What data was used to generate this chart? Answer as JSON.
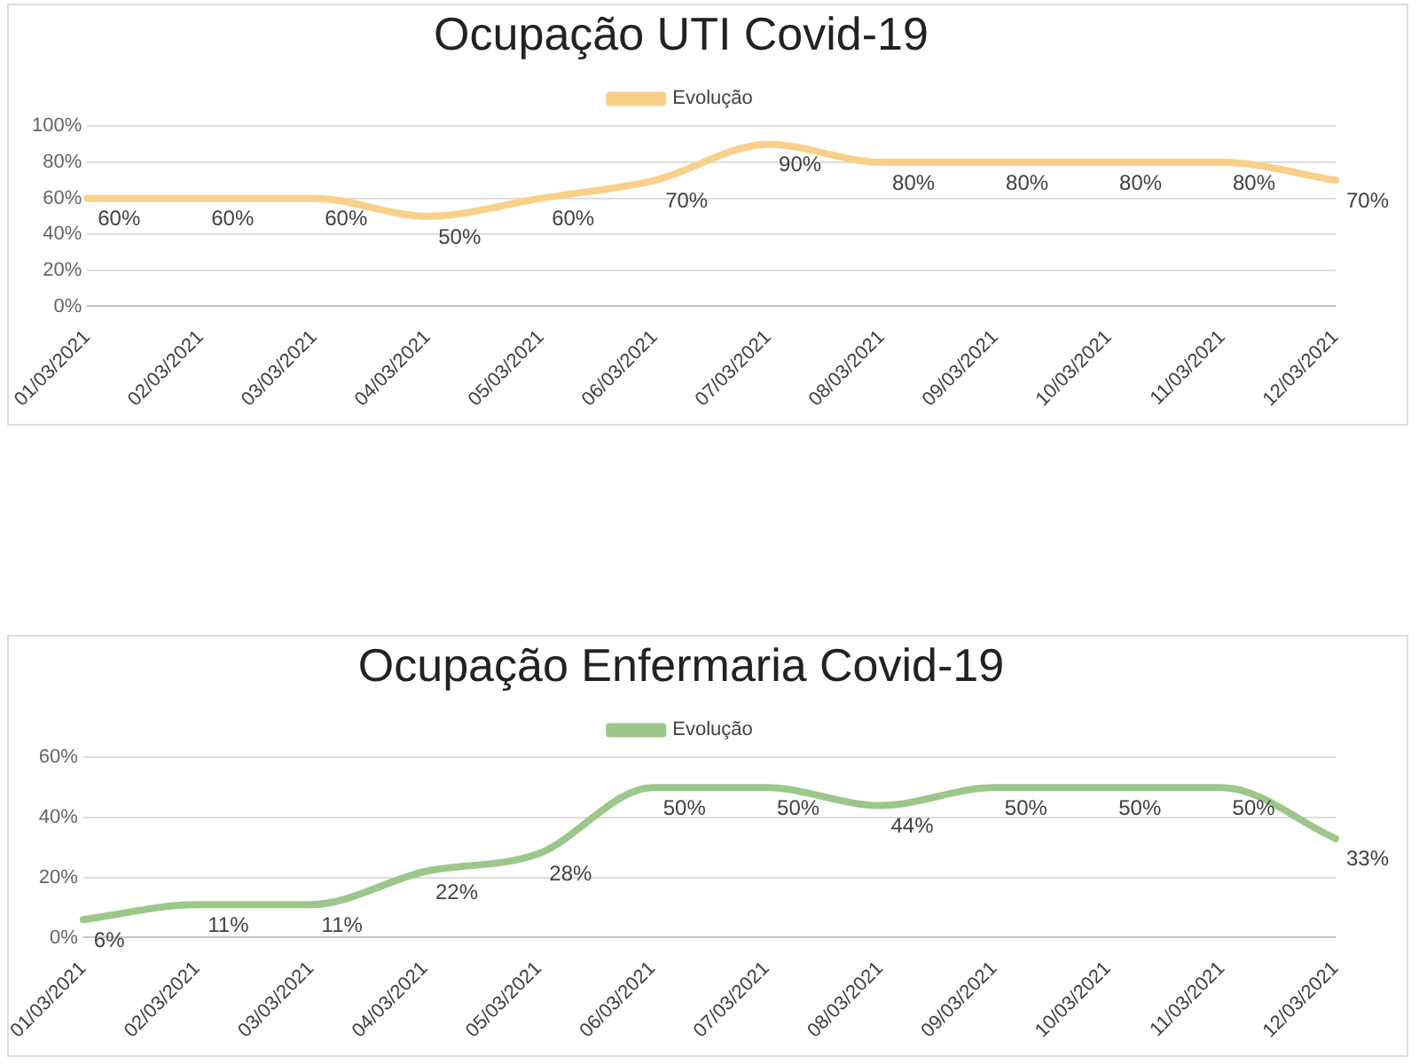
{
  "chart_data": [
    {
      "type": "line",
      "title": "Ocupação UTI Covid-19",
      "categories": [
        "01/03/2021",
        "02/03/2021",
        "03/03/2021",
        "04/03/2021",
        "05/03/2021",
        "06/03/2021",
        "07/03/2021",
        "08/03/2021",
        "09/03/2021",
        "10/03/2021",
        "11/03/2021",
        "12/03/2021"
      ],
      "series": [
        {
          "name": "Evolução",
          "color": "#f8d08a",
          "values": [
            60,
            60,
            60,
            50,
            60,
            70,
            90,
            80,
            80,
            80,
            80,
            70
          ],
          "value_labels": [
            "60%",
            "60%",
            "60%",
            "50%",
            "60%",
            "70%",
            "90%",
            "80%",
            "80%",
            "80%",
            "80%",
            "70%"
          ]
        }
      ],
      "ylim": [
        0,
        100
      ],
      "yticks": [
        {
          "value": 0,
          "label": "0%"
        },
        {
          "value": 20,
          "label": "20%"
        },
        {
          "value": 40,
          "label": "40%"
        },
        {
          "value": 60,
          "label": "60%"
        },
        {
          "value": 80,
          "label": "80%"
        },
        {
          "value": 100,
          "label": "100%"
        }
      ],
      "grid": "y",
      "legend": "top",
      "marker": "none"
    },
    {
      "type": "line",
      "title": "Ocupação Enfermaria Covid-19",
      "categories": [
        "01/03/2021",
        "02/03/2021",
        "03/03/2021",
        "04/03/2021",
        "05/03/2021",
        "06/03/2021",
        "07/03/2021",
        "08/03/2021",
        "09/03/2021",
        "10/03/2021",
        "11/03/2021",
        "12/03/2021"
      ],
      "series": [
        {
          "name": "Evolução",
          "color": "#9cc78a",
          "values": [
            6,
            11,
            11,
            22,
            28,
            50,
            50,
            44,
            50,
            50,
            50,
            33
          ],
          "value_labels": [
            "6%",
            "11%",
            "11%",
            "22%",
            "28%",
            "50%",
            "50%",
            "44%",
            "50%",
            "50%",
            "50%",
            "33%"
          ]
        }
      ],
      "ylim": [
        0,
        60
      ],
      "yticks": [
        {
          "value": 0,
          "label": "0%"
        },
        {
          "value": 20,
          "label": "20%"
        },
        {
          "value": 40,
          "label": "40%"
        },
        {
          "value": 60,
          "label": "60%"
        }
      ],
      "grid": "y",
      "legend": "top",
      "marker": "none"
    }
  ]
}
